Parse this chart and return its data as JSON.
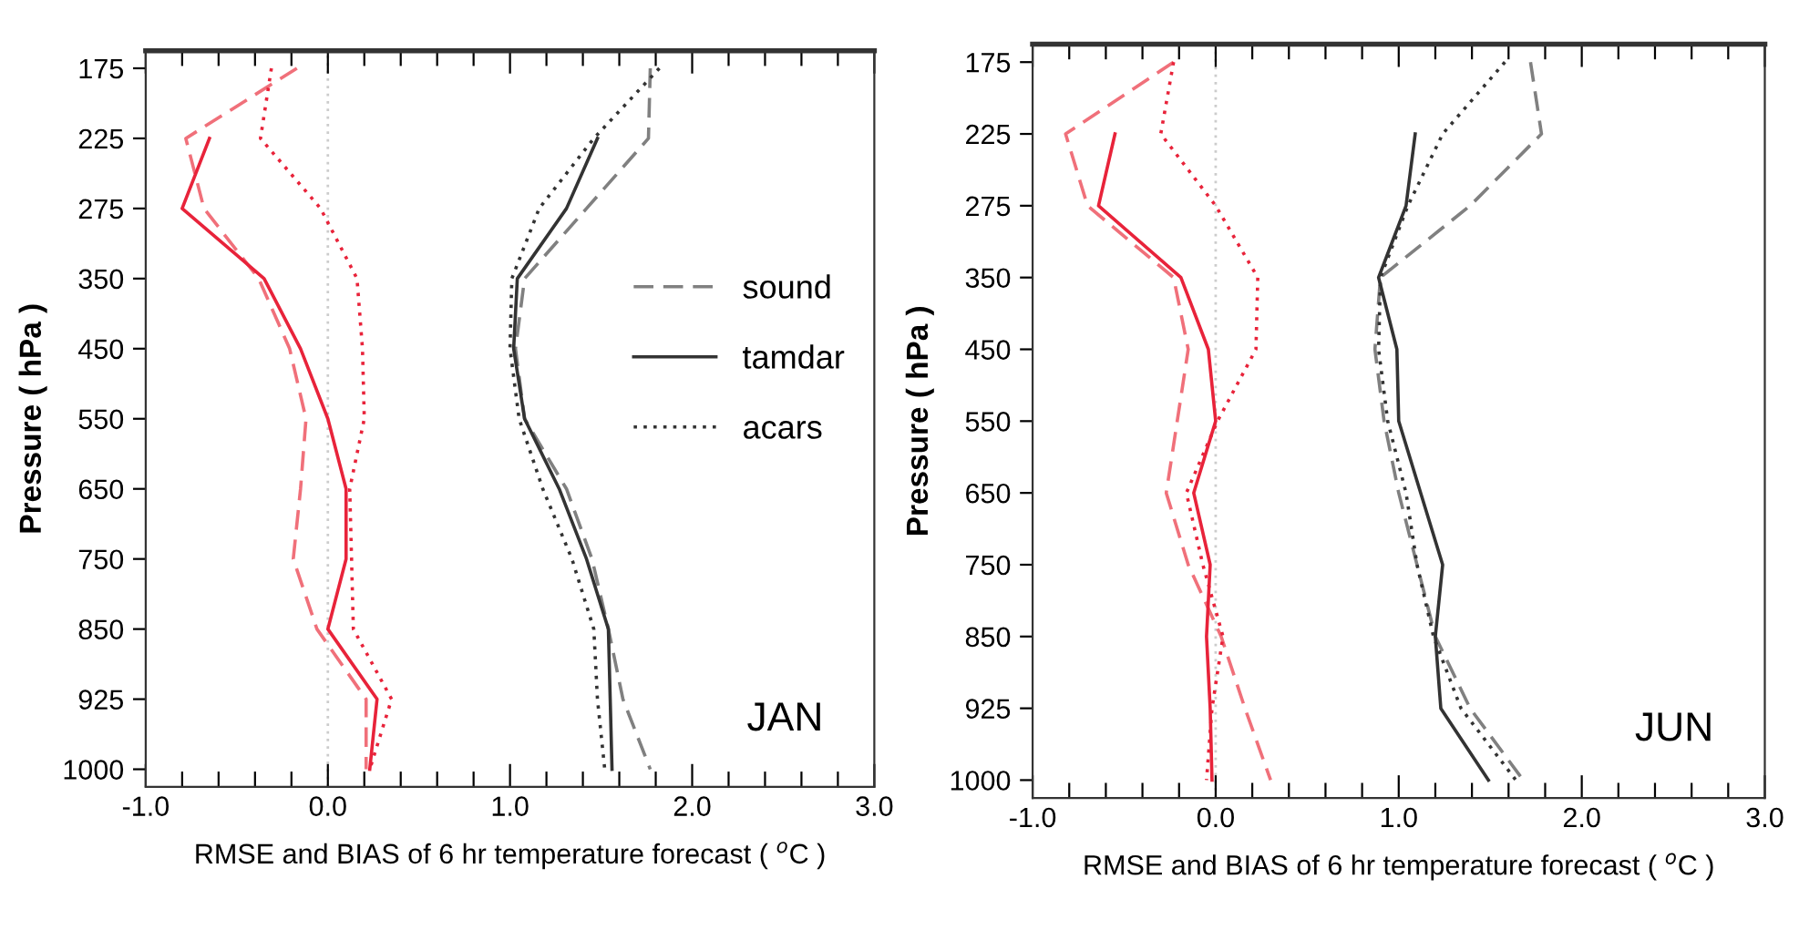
{
  "chart_data": [
    {
      "type": "line",
      "orientation": "horizontal",
      "xlabel": "RMSE and BIAS of 6 hr temperature forecast ( $^{o}$C )",
      "ylabel": "Pressure ( hPa )",
      "categories": [
        "175",
        "225",
        "275",
        "350",
        "450",
        "550",
        "650",
        "750",
        "850",
        "925",
        "1000"
      ],
      "xlim": [
        -1.0,
        3.0
      ],
      "xticks": [
        {
          "value": -1.0,
          "label": "-1.0"
        },
        {
          "value": -0.8,
          "label": null
        },
        {
          "value": -0.6,
          "label": null
        },
        {
          "value": -0.4,
          "label": null
        },
        {
          "value": -0.2,
          "label": null
        },
        {
          "value": 0.0,
          "label": "0.0"
        },
        {
          "value": 0.2,
          "label": null
        },
        {
          "value": 0.4,
          "label": null
        },
        {
          "value": 0.6,
          "label": null
        },
        {
          "value": 0.8,
          "label": null
        },
        {
          "value": 1.0,
          "label": "1.0"
        },
        {
          "value": 1.2,
          "label": null
        },
        {
          "value": 1.4,
          "label": null
        },
        {
          "value": 1.6,
          "label": null
        },
        {
          "value": 1.8,
          "label": null
        },
        {
          "value": 2.0,
          "label": "2.0"
        },
        {
          "value": 2.2,
          "label": null
        },
        {
          "value": 2.4,
          "label": null
        },
        {
          "value": 2.6,
          "label": null
        },
        {
          "value": 2.8,
          "label": null
        },
        {
          "value": 3.0,
          "label": "3.0"
        }
      ],
      "grid": false,
      "legend": "right",
      "marker": "none",
      "ref_lines": [
        {
          "axis": "x",
          "value": 0,
          "color": "#cccccc",
          "line_style": "dotted"
        }
      ],
      "annotations": [
        "JAN"
      ],
      "series": [
        {
          "color": "#f0707a",
          "line_style": "dashed",
          "values": [
            -0.17,
            -0.78,
            -0.68,
            -0.38,
            -0.21,
            -0.12,
            -0.15,
            -0.19,
            -0.06,
            0.21,
            0.21
          ]
        },
        {
          "color": "#e8233a",
          "line_style": "solid",
          "values": [
            null,
            -0.65,
            -0.8,
            -0.35,
            -0.15,
            0.0,
            0.1,
            0.1,
            0.0,
            0.27,
            0.23
          ]
        },
        {
          "color": "#e8233a",
          "line_style": "dotted",
          "values": [
            -0.31,
            -0.37,
            -0.04,
            0.16,
            0.19,
            0.2,
            0.12,
            0.13,
            0.14,
            0.35,
            0.23
          ]
        },
        {
          "name": "sound",
          "color": "#808080",
          "line_style": "dashed",
          "values": [
            1.77,
            1.76,
            1.42,
            1.08,
            1.03,
            1.08,
            1.31,
            1.45,
            1.54,
            1.62,
            1.77
          ]
        },
        {
          "name": "tamdar",
          "color": "#333333",
          "line_style": "solid",
          "values": [
            null,
            1.48,
            1.31,
            1.04,
            1.02,
            1.08,
            1.27,
            1.42,
            1.54,
            1.55,
            1.56
          ]
        },
        {
          "name": "acars",
          "color": "#333333",
          "line_style": "dotted",
          "values": [
            1.82,
            1.46,
            1.16,
            1.01,
            1.0,
            1.05,
            1.18,
            1.34,
            1.46,
            1.48,
            1.52
          ]
        }
      ]
    },
    {
      "type": "line",
      "orientation": "horizontal",
      "xlabel": "RMSE and BIAS of 6 hr temperature forecast ( $^{o}$C )",
      "ylabel": "Pressure ( hPa )",
      "categories": [
        "175",
        "225",
        "275",
        "350",
        "450",
        "550",
        "650",
        "750",
        "850",
        "925",
        "1000"
      ],
      "xlim": [
        -1.0,
        3.0
      ],
      "xticks": [
        {
          "value": -1.0,
          "label": "-1.0"
        },
        {
          "value": -0.8,
          "label": null
        },
        {
          "value": -0.6,
          "label": null
        },
        {
          "value": -0.4,
          "label": null
        },
        {
          "value": -0.2,
          "label": null
        },
        {
          "value": 0.0,
          "label": "0.0"
        },
        {
          "value": 0.2,
          "label": null
        },
        {
          "value": 0.4,
          "label": null
        },
        {
          "value": 0.6,
          "label": null
        },
        {
          "value": 0.8,
          "label": null
        },
        {
          "value": 1.0,
          "label": "1.0"
        },
        {
          "value": 1.2,
          "label": null
        },
        {
          "value": 1.4,
          "label": null
        },
        {
          "value": 1.6,
          "label": null
        },
        {
          "value": 1.8,
          "label": null
        },
        {
          "value": 2.0,
          "label": "2.0"
        },
        {
          "value": 2.2,
          "label": null
        },
        {
          "value": 2.4,
          "label": null
        },
        {
          "value": 2.6,
          "label": null
        },
        {
          "value": 2.8,
          "label": null
        },
        {
          "value": 3.0,
          "label": "3.0"
        }
      ],
      "grid": false,
      "marker": "none",
      "ref_lines": [
        {
          "axis": "x",
          "value": 0,
          "color": "#cccccc",
          "line_style": "dotted"
        }
      ],
      "annotations": [
        "JUN"
      ],
      "series": [
        {
          "color": "#f0707a",
          "line_style": "dashed",
          "values": [
            -0.23,
            -0.82,
            -0.7,
            -0.23,
            -0.15,
            -0.21,
            -0.27,
            -0.15,
            0.03,
            0.16,
            0.3
          ]
        },
        {
          "color": "#e8233a",
          "line_style": "solid",
          "values": [
            null,
            -0.55,
            -0.64,
            -0.19,
            -0.04,
            0.0,
            -0.12,
            -0.03,
            -0.05,
            -0.03,
            -0.02
          ]
        },
        {
          "color": "#e8233a",
          "line_style": "dotted",
          "values": [
            -0.23,
            -0.3,
            0.0,
            0.23,
            0.22,
            0.01,
            -0.16,
            -0.07,
            0.04,
            -0.02,
            -0.05
          ]
        },
        {
          "color": "#808080",
          "line_style": "dashed",
          "values": [
            1.72,
            1.78,
            1.39,
            0.9,
            0.87,
            0.92,
            1.0,
            1.1,
            1.2,
            1.39,
            1.68
          ]
        },
        {
          "color": "#333333",
          "line_style": "solid",
          "values": [
            null,
            1.09,
            1.04,
            0.89,
            0.99,
            1.0,
            1.12,
            1.24,
            1.2,
            1.23,
            1.49
          ]
        },
        {
          "color": "#333333",
          "line_style": "dotted",
          "values": [
            1.58,
            1.24,
            1.05,
            0.9,
            0.89,
            0.94,
            1.04,
            1.1,
            1.19,
            1.34,
            1.64
          ]
        }
      ]
    }
  ]
}
